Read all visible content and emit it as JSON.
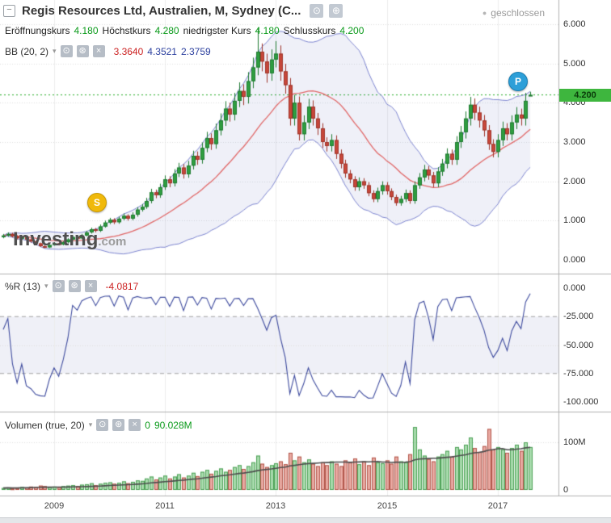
{
  "window": {
    "title": "Regis Resources Ltd, Australien, M, Sydney (C...",
    "status": "geschlossen"
  },
  "quote_bar": {
    "open_label": "Eröffnungskurs",
    "open": "4.180",
    "high_label": "Höchstkurs",
    "high": "4.280",
    "low_label": "niedrigster Kurs",
    "low": "4.180",
    "close_label": "Schlusskurs",
    "close": "4.200"
  },
  "indicators": {
    "bb": {
      "label": "BB (20, 2)",
      "values": [
        "3.3640",
        "4.3521",
        "2.3759"
      ]
    },
    "wr": {
      "label": "%R (13)",
      "value": "-4.0817"
    },
    "vol": {
      "label": "Volumen (true, 20)",
      "value_prefix": "0",
      "value": "90.028M"
    }
  },
  "axes": {
    "price": [
      "6.000",
      "5.000",
      "4.000",
      "3.000",
      "2.000",
      "1.000",
      "0.000"
    ],
    "wr": [
      "0.000",
      "-25.000",
      "-50.000",
      "-75.000",
      "-100.000"
    ],
    "volume": [
      "100M",
      "0"
    ],
    "time": [
      "2009",
      "2011",
      "2013",
      "2015",
      "2017"
    ]
  },
  "price_tag": "4.200",
  "markers": {
    "s": "S",
    "p": "P"
  },
  "watermark": {
    "main": "Investing",
    "suffix": ".com"
  },
  "icons": {
    "collapse": "−",
    "camera": "⊙",
    "expand": "⊕",
    "dropdown": "▾",
    "visibility": "⊙",
    "settings": "⊛",
    "remove": "×",
    "status_dot": "●"
  },
  "colors": {
    "up": "#2f9e41",
    "up_border": "#1f7a30",
    "down": "#c8473a",
    "down_border": "#9e352a",
    "bb_line": "#7c84cf",
    "bb_fill": "rgba(95,105,190,0.10)",
    "bb_mid": "#e06666",
    "wr_line": "#3e4b9e",
    "wr_band": "rgba(130,140,190,0.13)",
    "vol_up": "rgba(96,190,105,0.55)",
    "vol_up_border": "#4da056",
    "vol_down": "rgba(214,98,86,0.55)",
    "vol_down_border": "#b2564a",
    "vol_ma": "#4d4d4d",
    "price_line": "#22aa22",
    "price_tag_bg": "#3eb63e",
    "price_tag_text": "#0a3a0a",
    "value_green": "#0a9a1a",
    "value_red": "#cc2222",
    "value_blue": "#2b3f9e",
    "marker_s": "#f0b90b",
    "marker_p": "#2d9fd8"
  },
  "chart_data": {
    "type": "candlestick",
    "title": "Regis Resources Ltd, Australien, M, Sydney",
    "timeframe": "M",
    "x_start": "2008-02",
    "x_interval": "1 month",
    "x_ticks": [
      "2009",
      "2011",
      "2013",
      "2015",
      "2017"
    ],
    "x_tick_month_indices": [
      11,
      35,
      59,
      83,
      107
    ],
    "ylim_price": [
      0,
      6.6
    ],
    "ylim_wr": [
      0,
      -100
    ],
    "ylim_volume_m": [
      0,
      160
    ],
    "last_price": 4.2,
    "last_candle": {
      "open": 4.18,
      "high": 4.28,
      "low": 4.18,
      "close": 4.2
    },
    "ohlc": [
      [
        0.58,
        0.66,
        0.55,
        0.62
      ],
      [
        0.62,
        0.7,
        0.59,
        0.66
      ],
      [
        0.66,
        0.69,
        0.57,
        0.6
      ],
      [
        0.6,
        0.63,
        0.52,
        0.55
      ],
      [
        0.55,
        0.61,
        0.52,
        0.58
      ],
      [
        0.58,
        0.61,
        0.49,
        0.52
      ],
      [
        0.52,
        0.55,
        0.44,
        0.47
      ],
      [
        0.47,
        0.49,
        0.4,
        0.42
      ],
      [
        0.42,
        0.44,
        0.33,
        0.35
      ],
      [
        0.35,
        0.37,
        0.3,
        0.32
      ],
      [
        0.32,
        0.4,
        0.3,
        0.38
      ],
      [
        0.38,
        0.45,
        0.36,
        0.42
      ],
      [
        0.42,
        0.44,
        0.37,
        0.39
      ],
      [
        0.39,
        0.48,
        0.37,
        0.45
      ],
      [
        0.45,
        0.55,
        0.43,
        0.52
      ],
      [
        0.52,
        0.61,
        0.5,
        0.58
      ],
      [
        0.58,
        0.61,
        0.52,
        0.55
      ],
      [
        0.55,
        0.66,
        0.53,
        0.62
      ],
      [
        0.62,
        0.74,
        0.6,
        0.7
      ],
      [
        0.7,
        0.82,
        0.67,
        0.78
      ],
      [
        0.78,
        0.81,
        0.7,
        0.74
      ],
      [
        0.74,
        0.9,
        0.71,
        0.85
      ],
      [
        0.85,
        1.0,
        0.82,
        0.95
      ],
      [
        0.95,
        1.07,
        0.91,
        1.02
      ],
      [
        1.02,
        1.06,
        0.91,
        0.96
      ],
      [
        0.96,
        1.1,
        0.92,
        1.05
      ],
      [
        1.05,
        1.18,
        1.01,
        1.12
      ],
      [
        1.12,
        1.16,
        1.0,
        1.05
      ],
      [
        1.05,
        1.21,
        1.01,
        1.15
      ],
      [
        1.15,
        1.34,
        1.1,
        1.28
      ],
      [
        1.28,
        1.42,
        1.23,
        1.35
      ],
      [
        1.35,
        1.58,
        1.3,
        1.5
      ],
      [
        1.5,
        1.81,
        1.44,
        1.72
      ],
      [
        1.72,
        1.79,
        1.57,
        1.65
      ],
      [
        1.65,
        1.94,
        1.58,
        1.85
      ],
      [
        1.85,
        2.15,
        1.78,
        2.05
      ],
      [
        2.05,
        2.13,
        1.85,
        1.95
      ],
      [
        1.95,
        2.31,
        1.87,
        2.2
      ],
      [
        2.2,
        2.47,
        2.11,
        2.35
      ],
      [
        2.35,
        2.44,
        2.07,
        2.18
      ],
      [
        2.18,
        2.52,
        2.09,
        2.4
      ],
      [
        2.4,
        2.78,
        2.3,
        2.65
      ],
      [
        2.65,
        2.76,
        2.42,
        2.55
      ],
      [
        2.55,
        2.99,
        2.45,
        2.85
      ],
      [
        2.85,
        3.26,
        2.74,
        3.1
      ],
      [
        3.1,
        3.22,
        2.8,
        2.95
      ],
      [
        2.95,
        3.47,
        2.83,
        3.3
      ],
      [
        3.3,
        3.73,
        3.17,
        3.55
      ],
      [
        3.55,
        4.04,
        3.41,
        3.85
      ],
      [
        3.85,
        4.0,
        3.52,
        3.7
      ],
      [
        3.7,
        4.25,
        3.55,
        4.05
      ],
      [
        4.05,
        4.52,
        3.89,
        4.3
      ],
      [
        4.3,
        4.47,
        3.94,
        4.15
      ],
      [
        4.15,
        4.78,
        3.98,
        4.55
      ],
      [
        4.55,
        5.15,
        4.37,
        4.9
      ],
      [
        4.9,
        5.9,
        4.7,
        5.3
      ],
      [
        5.3,
        5.51,
        4.8,
        5.05
      ],
      [
        5.05,
        5.25,
        4.51,
        4.75
      ],
      [
        4.75,
        5.36,
        4.56,
        5.1
      ],
      [
        5.1,
        5.57,
        4.9,
        5.25
      ],
      [
        5.25,
        5.46,
        4.56,
        4.8
      ],
      [
        4.8,
        4.99,
        4.23,
        4.45
      ],
      [
        4.45,
        4.63,
        3.42,
        3.6
      ],
      [
        3.6,
        4.2,
        3.42,
        4.0
      ],
      [
        4.0,
        4.16,
        3.04,
        3.2
      ],
      [
        3.2,
        3.68,
        3.04,
        3.5
      ],
      [
        3.5,
        4.1,
        3.33,
        3.9
      ],
      [
        3.9,
        4.06,
        3.42,
        3.6
      ],
      [
        3.6,
        3.74,
        3.18,
        3.35
      ],
      [
        3.35,
        3.48,
        2.85,
        3.0
      ],
      [
        3.0,
        3.12,
        2.76,
        2.9
      ],
      [
        2.9,
        3.2,
        2.76,
        3.05
      ],
      [
        3.05,
        3.17,
        2.57,
        2.7
      ],
      [
        2.7,
        2.81,
        2.33,
        2.45
      ],
      [
        2.45,
        2.55,
        2.09,
        2.2
      ],
      [
        2.2,
        2.29,
        1.95,
        2.05
      ],
      [
        2.05,
        2.13,
        1.76,
        1.85
      ],
      [
        1.85,
        2.1,
        1.76,
        2.0
      ],
      [
        2.0,
        2.08,
        1.81,
        1.9
      ],
      [
        1.9,
        1.98,
        1.62,
        1.7
      ],
      [
        1.7,
        1.77,
        1.47,
        1.55
      ],
      [
        1.55,
        1.84,
        1.47,
        1.75
      ],
      [
        1.75,
        2.0,
        1.66,
        1.9
      ],
      [
        1.9,
        1.98,
        1.66,
        1.75
      ],
      [
        1.75,
        1.82,
        1.52,
        1.6
      ],
      [
        1.6,
        1.66,
        1.38,
        1.45
      ],
      [
        1.45,
        1.63,
        1.38,
        1.55
      ],
      [
        1.55,
        1.79,
        1.47,
        1.7
      ],
      [
        1.7,
        1.77,
        1.43,
        1.5
      ],
      [
        1.5,
        2.0,
        1.43,
        1.9
      ],
      [
        1.9,
        2.21,
        1.81,
        2.1
      ],
      [
        2.1,
        2.42,
        2.0,
        2.3
      ],
      [
        2.3,
        2.39,
        2.04,
        2.15
      ],
      [
        2.15,
        2.24,
        1.85,
        1.95
      ],
      [
        1.95,
        2.36,
        1.85,
        2.25
      ],
      [
        2.25,
        2.57,
        2.14,
        2.45
      ],
      [
        2.45,
        2.84,
        2.33,
        2.7
      ],
      [
        2.7,
        2.81,
        2.42,
        2.55
      ],
      [
        2.55,
        3.15,
        2.42,
        3.0
      ],
      [
        3.0,
        3.41,
        2.85,
        3.25
      ],
      [
        3.25,
        3.78,
        3.09,
        3.6
      ],
      [
        3.6,
        4.15,
        3.42,
        3.95
      ],
      [
        3.95,
        4.11,
        3.56,
        3.75
      ],
      [
        3.75,
        3.9,
        3.37,
        3.55
      ],
      [
        3.55,
        3.69,
        3.14,
        3.3
      ],
      [
        3.3,
        3.43,
        2.8,
        2.95
      ],
      [
        2.95,
        3.07,
        2.61,
        2.75
      ],
      [
        2.75,
        3.2,
        2.61,
        3.05
      ],
      [
        3.05,
        3.52,
        2.9,
        3.35
      ],
      [
        3.35,
        3.48,
        3.04,
        3.2
      ],
      [
        3.2,
        3.68,
        3.04,
        3.5
      ],
      [
        3.5,
        3.89,
        3.33,
        3.7
      ],
      [
        3.7,
        3.85,
        3.42,
        3.6
      ],
      [
        3.6,
        4.25,
        3.42,
        4.05
      ],
      [
        4.18,
        4.28,
        4.18,
        4.2
      ]
    ],
    "volume_m": [
      4,
      5,
      3,
      4,
      6,
      5,
      7,
      6,
      9,
      8,
      6,
      7,
      6,
      8,
      9,
      10,
      8,
      11,
      12,
      14,
      10,
      13,
      15,
      16,
      13,
      15,
      18,
      14,
      17,
      20,
      19,
      24,
      28,
      22,
      26,
      30,
      24,
      28,
      33,
      26,
      30,
      36,
      29,
      38,
      42,
      34,
      40,
      45,
      38,
      42,
      48,
      52,
      44,
      50,
      58,
      72,
      55,
      48,
      52,
      56,
      60,
      54,
      78,
      62,
      70,
      58,
      64,
      55,
      50,
      58,
      52,
      60,
      55,
      50,
      62,
      58,
      66,
      54,
      60,
      52,
      68,
      58,
      56,
      62,
      55,
      70,
      60,
      58,
      75,
      132,
      85,
      72,
      65,
      60,
      70,
      75,
      82,
      70,
      90,
      85,
      95,
      110,
      88,
      80,
      92,
      128,
      85,
      90,
      85,
      78,
      88,
      95,
      82,
      100,
      90.028
    ],
    "indicators": {
      "bollinger": {
        "period": 20,
        "stddev": 2,
        "display_values": [
          3.364,
          4.3521,
          2.3759
        ]
      },
      "williams_r": {
        "period": 13,
        "last_value": -4.0817,
        "dashed_levels": [
          -25,
          -75
        ],
        "range": [
          0,
          -100
        ]
      },
      "volume_sma": {
        "period": 20,
        "last_volume_label": "90.028M"
      }
    },
    "legend_position": "top-left",
    "grid": true
  }
}
